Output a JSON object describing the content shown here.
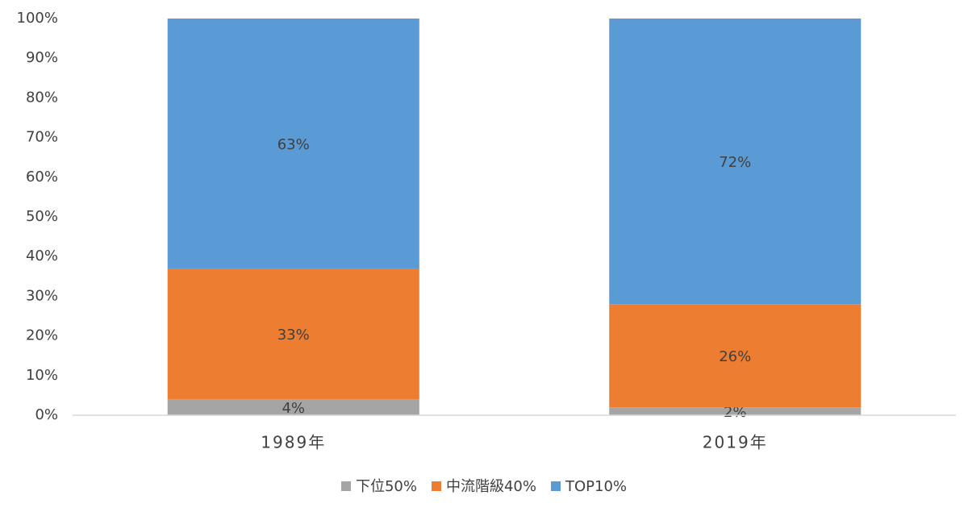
{
  "chart_data": {
    "type": "stacked_bar",
    "categories": [
      "1989年",
      "2019年"
    ],
    "series": [
      {
        "name": "下位50%",
        "color": "#a5a5a5",
        "values": [
          4,
          2
        ],
        "value_labels": [
          "4%",
          "2%"
        ]
      },
      {
        "name": "中流階級40%",
        "color": "#ed7d31",
        "values": [
          33,
          26
        ],
        "value_labels": [
          "33%",
          "26%"
        ]
      },
      {
        "name": "TOP10%",
        "color": "#5b9bd5",
        "values": [
          63,
          72
        ],
        "value_labels": [
          "63%",
          "72%"
        ]
      }
    ],
    "ylim": [
      0,
      100
    ],
    "yticks": [
      {
        "value": 0,
        "label": "0%"
      },
      {
        "value": 10,
        "label": "10%"
      },
      {
        "value": 20,
        "label": "20%"
      },
      {
        "value": 30,
        "label": "30%"
      },
      {
        "value": 40,
        "label": "40%"
      },
      {
        "value": 50,
        "label": "50%"
      },
      {
        "value": 60,
        "label": "60%"
      },
      {
        "value": 70,
        "label": "70%"
      },
      {
        "value": 80,
        "label": "80%"
      },
      {
        "value": 90,
        "label": "90%"
      },
      {
        "value": 100,
        "label": "100%"
      }
    ],
    "grid": false,
    "legend": "bottom"
  }
}
